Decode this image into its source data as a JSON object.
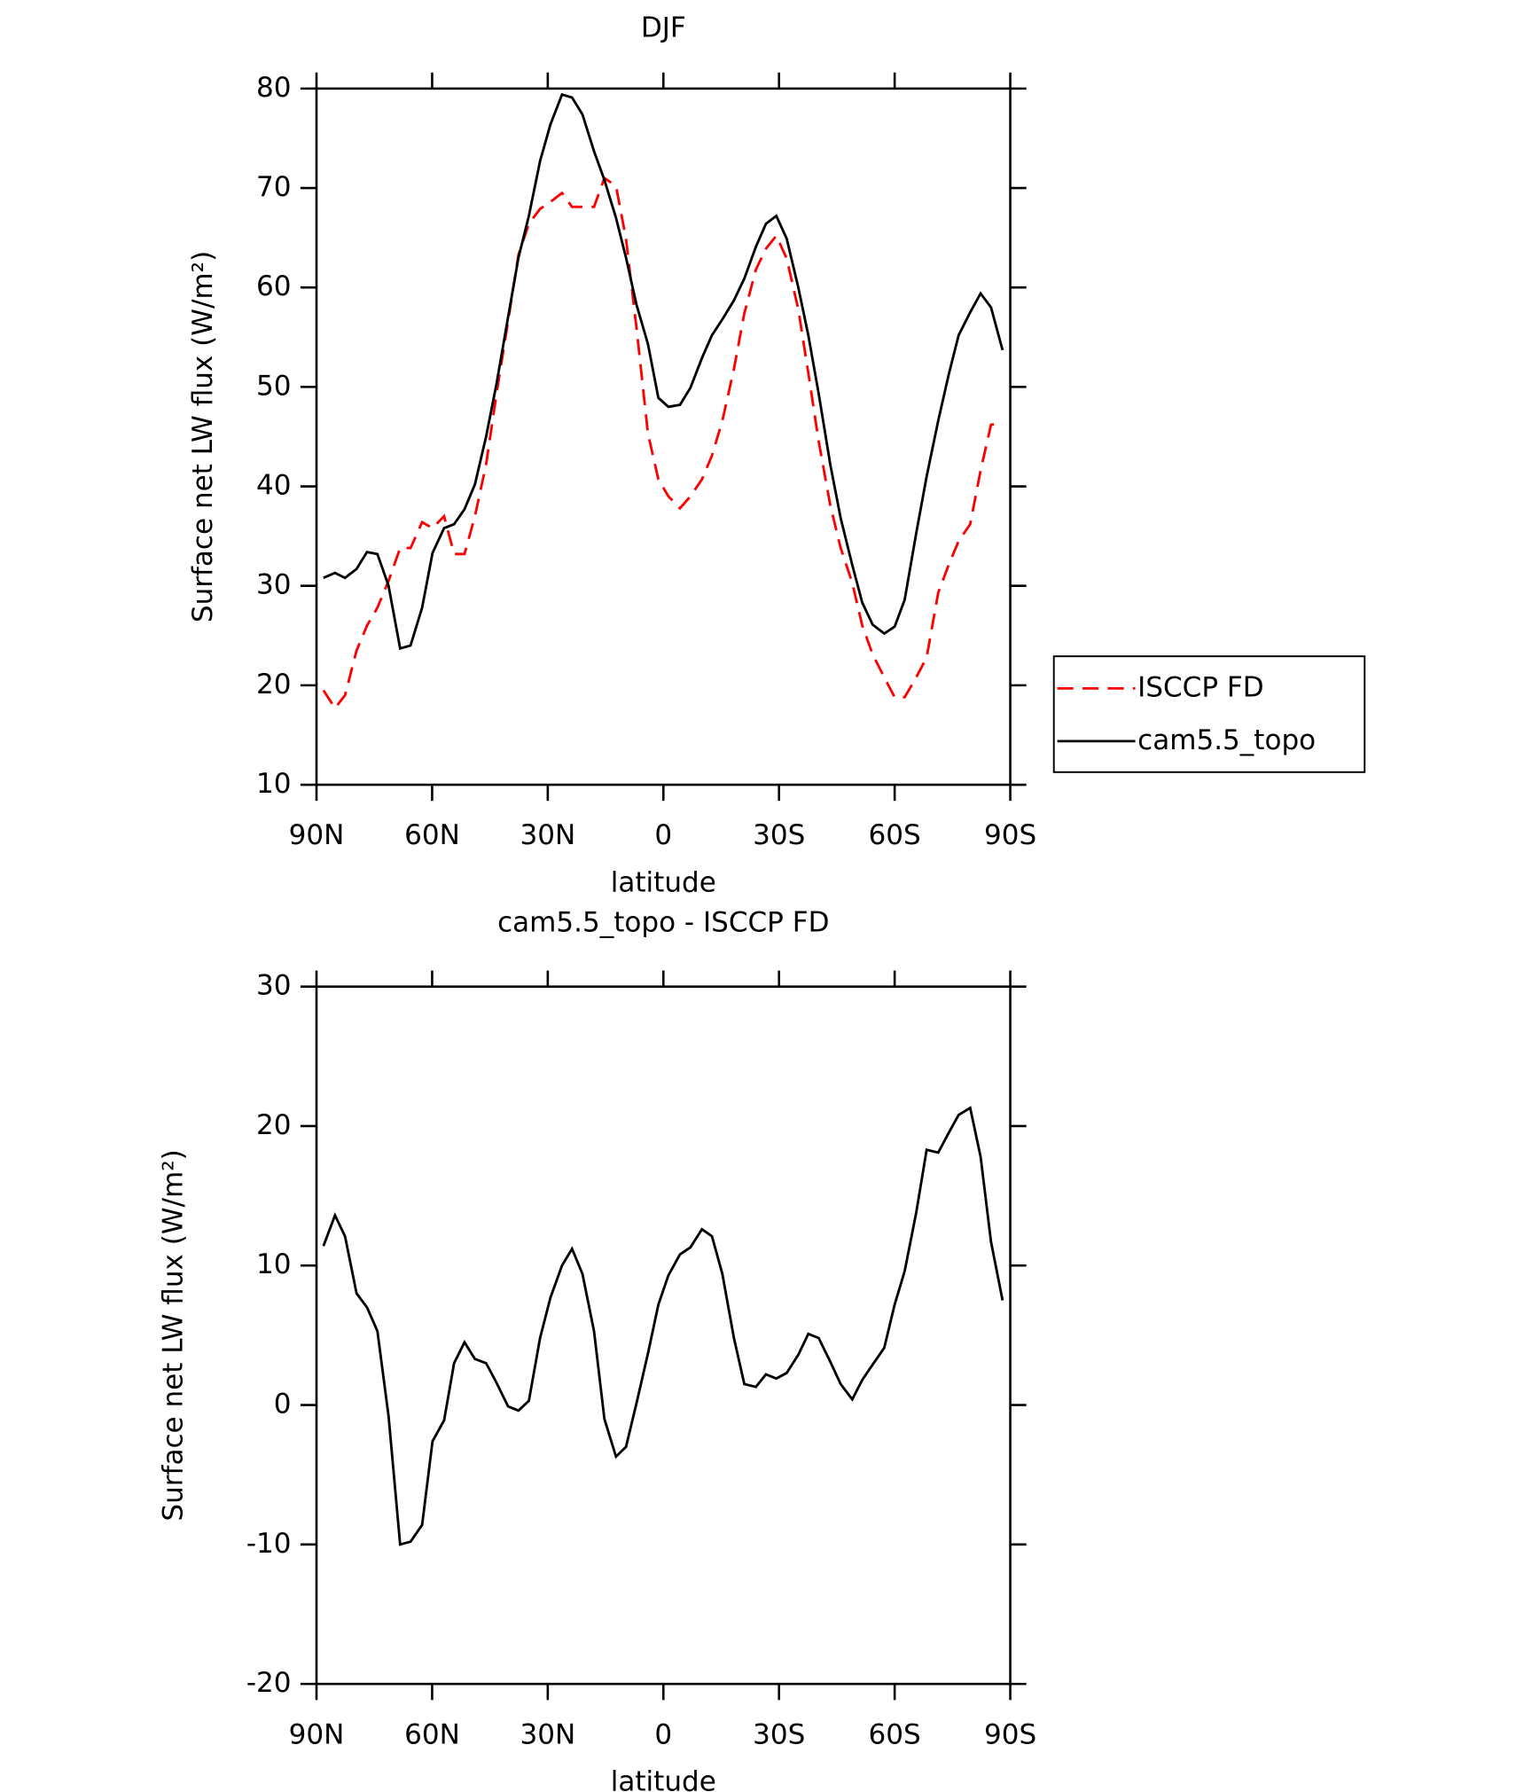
{
  "chart_data": [
    {
      "type": "line",
      "title": "DJF",
      "xlabel": "latitude",
      "ylabel": "Surface net LW flux (W/m²)",
      "x": [
        88.2,
        85.2,
        82.6,
        79.6,
        76.9,
        74.2,
        71.3,
        68.3,
        65.6,
        62.6,
        59.9,
        56.9,
        54.3,
        51.6,
        48.9,
        46,
        43.3,
        40.3,
        37.6,
        34.9,
        32,
        29.3,
        26.3,
        23.7,
        21,
        18,
        15.3,
        12.3,
        9.7,
        7,
        4,
        1.3,
        -1.3,
        -4.3,
        -7,
        -10,
        -12.6,
        -15.3,
        -18.3,
        -21,
        -24,
        -26.6,
        -29.3,
        -32,
        -35,
        -37.6,
        -40.3,
        -43.3,
        -46,
        -49,
        -51.6,
        -54.3,
        -57.3,
        -60,
        -62.6,
        -65.6,
        -68.3,
        -71.3,
        -74,
        -76.6,
        -79.6,
        -82.3,
        -85,
        -88
      ],
      "series": [
        {
          "name": "ISCCP FD",
          "color": "#ff0000",
          "dashed": true,
          "values": [
            19.5,
            17.7,
            19,
            23.5,
            26,
            27.8,
            30.5,
            33.8,
            33.8,
            36.4,
            35.8,
            37,
            33.2,
            33.2,
            37,
            42.2,
            49.3,
            56.6,
            63.3,
            66.4,
            67.9,
            68.6,
            69.5,
            68.1,
            68.1,
            68.1,
            71,
            70.2,
            64.9,
            56,
            45.3,
            40.7,
            39,
            37.8,
            39,
            40.7,
            43.1,
            46.6,
            51.8,
            57.4,
            61.8,
            63.9,
            65.2,
            62.9,
            57.8,
            51.4,
            44.5,
            38.1,
            33.8,
            30.3,
            26,
            23.1,
            20.8,
            18.8,
            18.8,
            20.8,
            22.8,
            29.3,
            32.1,
            34.5,
            36.2,
            41.6,
            46.2,
            46.3
          ]
        },
        {
          "name": "cam5.5_topo",
          "color": "#000000",
          "dashed": false,
          "values": [
            30.8,
            31.3,
            30.8,
            31.7,
            33.4,
            33.2,
            30,
            23.7,
            24,
            27.8,
            33.3,
            35.8,
            36.2,
            37.7,
            40.2,
            45,
            50.3,
            57,
            63,
            67.2,
            72.7,
            76.4,
            79.4,
            79.1,
            77.4,
            73.7,
            70.8,
            67,
            63,
            58.3,
            54.3,
            48.9,
            48,
            48.2,
            49.9,
            52.9,
            55.2,
            56.8,
            58.7,
            60.9,
            64.1,
            66.4,
            67.2,
            64.9,
            60,
            55.2,
            49.3,
            42.2,
            36.8,
            32.1,
            28.3,
            26.1,
            25.2,
            25.9,
            28.6,
            35.3,
            41,
            46.6,
            51.2,
            55.2,
            57.5,
            59.4,
            58,
            53.7
          ]
        }
      ],
      "xlim": [
        90,
        -90
      ],
      "xticks": [
        {
          "value": 90,
          "label": "90N"
        },
        {
          "value": 60,
          "label": "60N"
        },
        {
          "value": 30,
          "label": "30N"
        },
        0,
        {
          "value": -30,
          "label": "30S"
        },
        {
          "value": -60,
          "label": "60S"
        },
        {
          "value": -90,
          "label": "90S"
        }
      ],
      "ylim": [
        10,
        80
      ],
      "yticks": [
        10,
        20,
        30,
        40,
        50,
        60,
        70,
        80
      ],
      "legend": "right"
    },
    {
      "type": "line",
      "title": "cam5.5_topo - ISCCP FD",
      "xlabel": "latitude",
      "ylabel": "Surface net LW flux (W/m²)",
      "x": [
        88.2,
        85.2,
        82.6,
        79.6,
        76.9,
        74.2,
        71.3,
        68.3,
        65.6,
        62.6,
        59.9,
        56.9,
        54.3,
        51.6,
        48.9,
        46,
        43.3,
        40.3,
        37.6,
        34.9,
        32,
        29.3,
        26.3,
        23.7,
        21,
        18,
        15.3,
        12.3,
        9.7,
        7,
        4,
        1.3,
        -1.3,
        -4.3,
        -7,
        -10,
        -12.6,
        -15.3,
        -18.3,
        -21,
        -24,
        -26.6,
        -29.3,
        -32,
        -35,
        -37.6,
        -40.3,
        -43.3,
        -46,
        -49,
        -51.6,
        -54.3,
        -57.3,
        -60,
        -62.6,
        -65.6,
        -68.3,
        -71.3,
        -74,
        -76.6,
        -79.6,
        -82.3,
        -85,
        -88
      ],
      "color": "#000000",
      "values": [
        11.4,
        13.6,
        12.1,
        8,
        7,
        5.3,
        -0.8,
        -10,
        -9.8,
        -8.6,
        -2.6,
        -1.1,
        3,
        4.5,
        3.3,
        3,
        1.6,
        -0.1,
        -0.4,
        0.3,
        4.8,
        7.7,
        10,
        11.2,
        9.4,
        5.3,
        -1,
        -3.7,
        -3,
        0.1,
        3.7,
        7.2,
        9.3,
        10.8,
        11.3,
        12.6,
        12.1,
        9.4,
        4.8,
        1.5,
        1.3,
        2.2,
        1.9,
        2.3,
        3.6,
        5.1,
        4.8,
        3.1,
        1.5,
        0.4,
        1.8,
        2.9,
        4.1,
        7.2,
        9.6,
        13.8,
        18.3,
        18.1,
        19.5,
        20.8,
        21.3,
        17.8,
        11.7,
        7.5
      ],
      "xlim": [
        90,
        -90
      ],
      "xticks": [
        {
          "value": 90,
          "label": "90N"
        },
        {
          "value": 60,
          "label": "60N"
        },
        {
          "value": 30,
          "label": "30N"
        },
        0,
        {
          "value": -30,
          "label": "30S"
        },
        {
          "value": -60,
          "label": "60S"
        },
        {
          "value": -90,
          "label": "90S"
        }
      ],
      "ylim": [
        -20,
        30
      ],
      "yticks": [
        -20,
        -10,
        0,
        10,
        20,
        30
      ]
    }
  ]
}
